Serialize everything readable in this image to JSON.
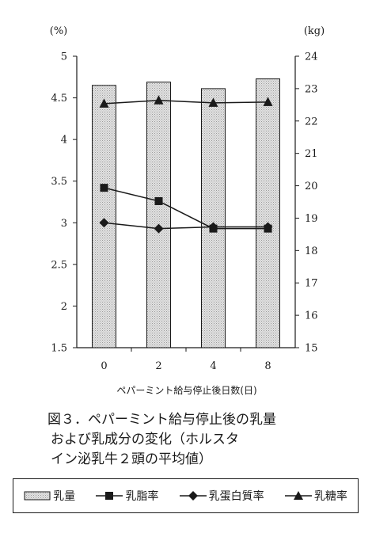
{
  "chart_data": {
    "type": "bar+line",
    "categories": [
      "0",
      "2",
      "4",
      "8"
    ],
    "xlabel": "ペパーミント給与停止後日数(日)",
    "y_left": {
      "unit": "(%)",
      "min": 1.5,
      "max": 5,
      "ticks": [
        "1.5",
        "2",
        "2.5",
        "3",
        "3.5",
        "4",
        "4.5",
        "5"
      ]
    },
    "y_right": {
      "unit": "(kg)",
      "min": 15,
      "max": 24,
      "ticks": [
        "15",
        "16",
        "17",
        "18",
        "19",
        "20",
        "21",
        "22",
        "23",
        "24"
      ]
    },
    "series": [
      {
        "name": "乳量",
        "type": "bar",
        "axis": "right",
        "values": [
          23.1,
          23.2,
          23.0,
          23.3
        ],
        "marker": "bar-icon"
      },
      {
        "name": "乳脂率",
        "type": "line",
        "axis": "left",
        "values": [
          3.42,
          3.26,
          2.93,
          2.93
        ],
        "marker": "square-icon"
      },
      {
        "name": "乳蛋白質率",
        "type": "line",
        "axis": "left",
        "values": [
          3.0,
          2.93,
          2.95,
          2.95
        ],
        "marker": "diamond-icon"
      },
      {
        "name": "乳糖率",
        "type": "line",
        "axis": "left",
        "values": [
          4.43,
          4.47,
          4.44,
          4.45
        ],
        "marker": "triangle-icon"
      }
    ],
    "bar_color": "#d0d0d0",
    "line_color": "#1a1a1a"
  },
  "caption": {
    "line1": "図３．ペパーミント給与停止後の乳量",
    "line2": "および乳成分の変化（ホルスタ",
    "line3": "イン泌乳牛２頭の平均値）"
  }
}
